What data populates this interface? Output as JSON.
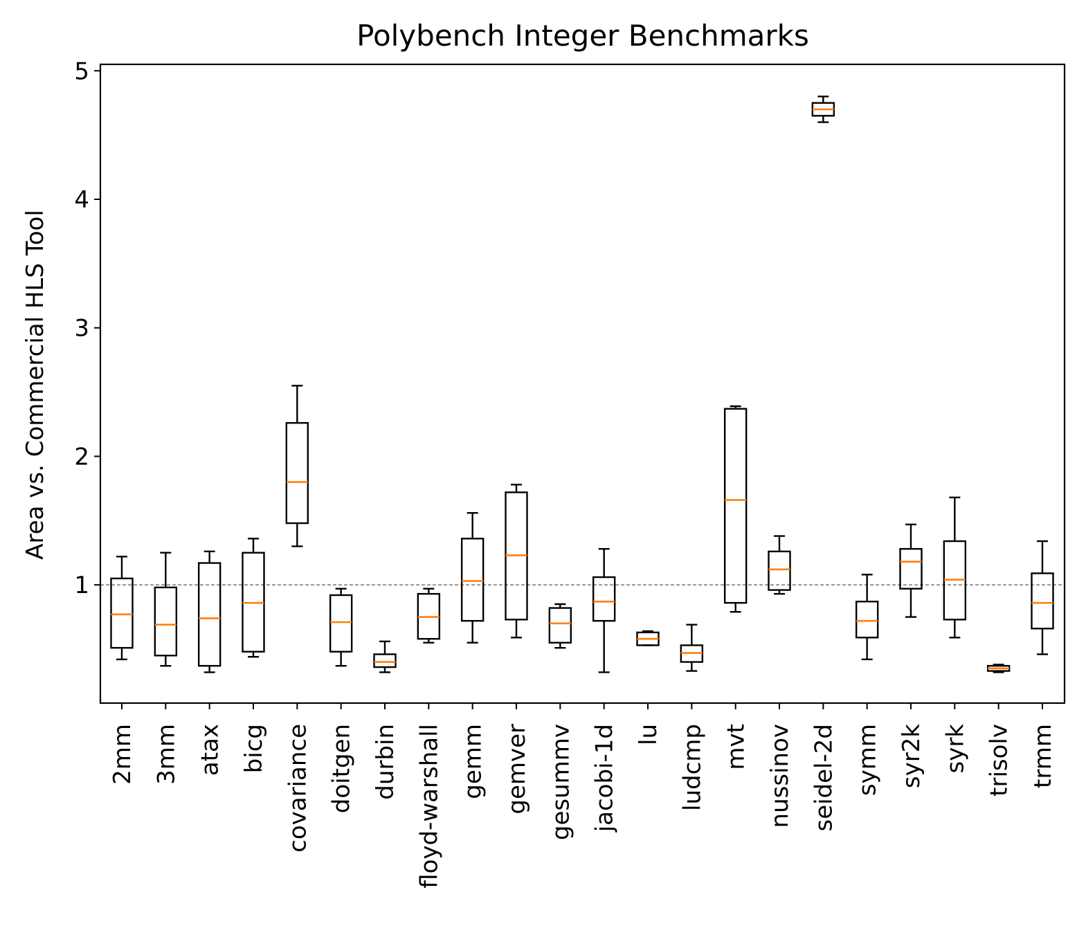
{
  "chart_data": {
    "type": "boxplot",
    "title": "Polybench Integer Benchmarks",
    "xlabel": "",
    "ylabel": "Area vs. Commercial HLS Tool",
    "ylim": [
      0.08,
      5.05
    ],
    "yticks": [
      1,
      2,
      3,
      4,
      5
    ],
    "reference_line": 1,
    "colors": {
      "box": "#000000",
      "median": "#ff7f0e",
      "reference": "#808080"
    },
    "categories": [
      "2mm",
      "3mm",
      "atax",
      "bicg",
      "covariance",
      "doitgen",
      "durbin",
      "floyd-warshall",
      "gemm",
      "gemver",
      "gesummv",
      "jacobi-1d",
      "lu",
      "ludcmp",
      "mvt",
      "nussinov",
      "seidel-2d",
      "symm",
      "syr2k",
      "syrk",
      "trisolv",
      "trmm"
    ],
    "boxes": [
      {
        "name": "2mm",
        "whislo": 0.42,
        "q1": 0.51,
        "med": 0.77,
        "q3": 1.05,
        "whishi": 1.22
      },
      {
        "name": "3mm",
        "whislo": 0.37,
        "q1": 0.45,
        "med": 0.69,
        "q3": 0.98,
        "whishi": 1.25
      },
      {
        "name": "atax",
        "whislo": 0.32,
        "q1": 0.37,
        "med": 0.74,
        "q3": 1.17,
        "whishi": 1.26
      },
      {
        "name": "bicg",
        "whislo": 0.44,
        "q1": 0.48,
        "med": 0.86,
        "q3": 1.25,
        "whishi": 1.36
      },
      {
        "name": "covariance",
        "whislo": 1.3,
        "q1": 1.48,
        "med": 1.8,
        "q3": 2.26,
        "whishi": 2.55
      },
      {
        "name": "doitgen",
        "whislo": 0.37,
        "q1": 0.48,
        "med": 0.71,
        "q3": 0.92,
        "whishi": 0.97
      },
      {
        "name": "durbin",
        "whislo": 0.32,
        "q1": 0.36,
        "med": 0.4,
        "q3": 0.46,
        "whishi": 0.56
      },
      {
        "name": "floyd-warshall",
        "whislo": 0.55,
        "q1": 0.58,
        "med": 0.75,
        "q3": 0.93,
        "whishi": 0.97
      },
      {
        "name": "gemm",
        "whislo": 0.55,
        "q1": 0.72,
        "med": 1.03,
        "q3": 1.36,
        "whishi": 1.56
      },
      {
        "name": "gemver",
        "whislo": 0.59,
        "q1": 0.73,
        "med": 1.23,
        "q3": 1.72,
        "whishi": 1.78
      },
      {
        "name": "gesummv",
        "whislo": 0.51,
        "q1": 0.55,
        "med": 0.7,
        "q3": 0.82,
        "whishi": 0.85
      },
      {
        "name": "jacobi-1d",
        "whislo": 0.32,
        "q1": 0.72,
        "med": 0.87,
        "q3": 1.06,
        "whishi": 1.28
      },
      {
        "name": "lu",
        "whislo": 0.53,
        "q1": 0.53,
        "med": 0.58,
        "q3": 0.63,
        "whishi": 0.64
      },
      {
        "name": "ludcmp",
        "whislo": 0.33,
        "q1": 0.4,
        "med": 0.47,
        "q3": 0.53,
        "whishi": 0.69
      },
      {
        "name": "mvt",
        "whislo": 0.79,
        "q1": 0.86,
        "med": 1.66,
        "q3": 2.37,
        "whishi": 2.39
      },
      {
        "name": "nussinov",
        "whislo": 0.93,
        "q1": 0.96,
        "med": 1.12,
        "q3": 1.26,
        "whishi": 1.38
      },
      {
        "name": "seidel-2d",
        "whislo": 4.6,
        "q1": 4.65,
        "med": 4.7,
        "q3": 4.75,
        "whishi": 4.8
      },
      {
        "name": "symm",
        "whislo": 0.42,
        "q1": 0.59,
        "med": 0.72,
        "q3": 0.87,
        "whishi": 1.08
      },
      {
        "name": "syr2k",
        "whislo": 0.75,
        "q1": 0.97,
        "med": 1.18,
        "q3": 1.28,
        "whishi": 1.47
      },
      {
        "name": "syrk",
        "whislo": 0.59,
        "q1": 0.73,
        "med": 1.04,
        "q3": 1.34,
        "whishi": 1.68
      },
      {
        "name": "trisolv",
        "whislo": 0.32,
        "q1": 0.33,
        "med": 0.35,
        "q3": 0.37,
        "whishi": 0.38
      },
      {
        "name": "trmm",
        "whislo": 0.46,
        "q1": 0.66,
        "med": 0.86,
        "q3": 1.09,
        "whishi": 1.34
      }
    ]
  }
}
